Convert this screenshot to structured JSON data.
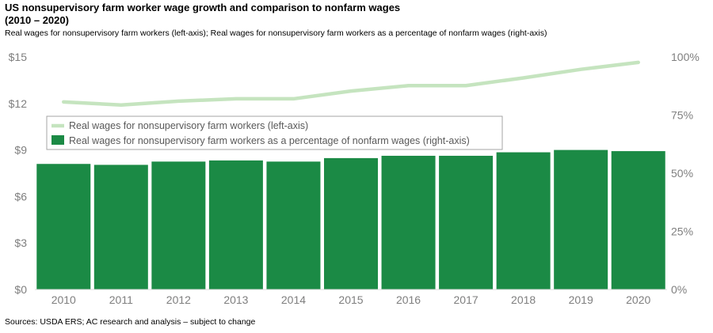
{
  "header": {
    "title_line1": "US nonsupervisory farm worker wage growth and comparison to nonfarm wages",
    "title_line2": "(2010 – 2020)",
    "subtitle": "Real wages for nonsupervisory farm workers (left-axis); Real wages for nonsupervisory farm workers as a percentage of nonfarm wages (right-axis)"
  },
  "footer": {
    "source": "Sources: USDA ERS; AC research and analysis – subject to change"
  },
  "chart_data": {
    "type": "bar",
    "categories": [
      "2010",
      "2011",
      "2012",
      "2013",
      "2014",
      "2015",
      "2016",
      "2017",
      "2018",
      "2019",
      "2020"
    ],
    "series": [
      {
        "name": "Real wages for nonsupervisory farm workers as a percentage of nonfarm wages (right-axis)",
        "type": "bar",
        "axis": "right",
        "color": "#1b8a45",
        "values": [
          54,
          53.6,
          55,
          55.5,
          55,
          56.5,
          57.5,
          57.5,
          59,
          60,
          59.5
        ]
      },
      {
        "name": "Real wages for nonsupervisory farm workers (left-axis)",
        "type": "line",
        "axis": "left",
        "color": "#c5e4bf",
        "values": [
          12.1,
          11.9,
          12.15,
          12.3,
          12.3,
          12.8,
          13.15,
          13.15,
          13.65,
          14.2,
          14.65
        ]
      }
    ],
    "left_axis": {
      "ylim": [
        0,
        15
      ],
      "ticks": [
        0,
        3,
        6,
        9,
        12,
        15
      ],
      "tick_labels": [
        "$0",
        "$3",
        "$6",
        "$9",
        "$12",
        "$15"
      ]
    },
    "right_axis": {
      "ylim": [
        0,
        100
      ],
      "ticks": [
        0,
        25,
        50,
        75,
        100
      ],
      "tick_labels": [
        "0%",
        "25%",
        "50%",
        "75%",
        "100%"
      ]
    },
    "grid": false,
    "legend": "upper-left, inside plot"
  }
}
